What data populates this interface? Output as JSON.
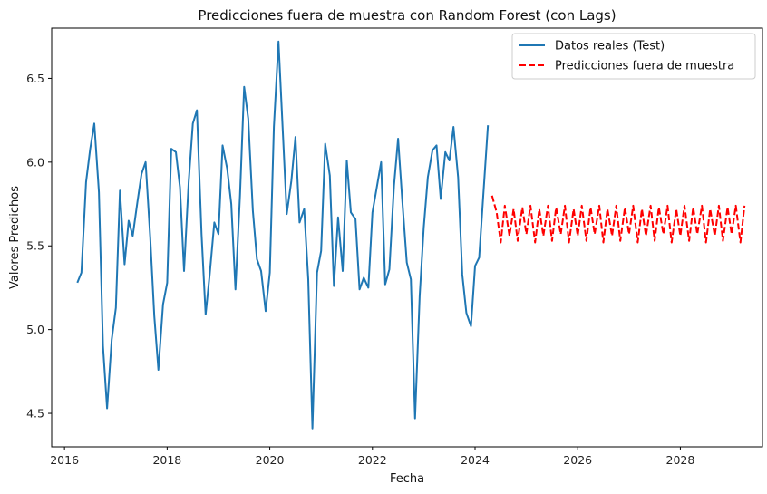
{
  "chart_data": {
    "type": "line",
    "title": "Predicciones fuera de muestra con Random Forest (con Lags)",
    "xlabel": "Fecha",
    "ylabel": "Valores Predichos",
    "xlim": [
      2015.75,
      2029.6
    ],
    "ylim": [
      4.3,
      6.8
    ],
    "xticks": [
      2016,
      2018,
      2020,
      2022,
      2024,
      2026,
      2028
    ],
    "yticks": [
      4.5,
      5.0,
      5.5,
      6.0,
      6.5
    ],
    "grid": false,
    "legend": "top-right",
    "series": [
      {
        "name": "Datos reales (Test)",
        "color": "#1f77b4",
        "style": "solid",
        "points": [
          [
            2016.25,
            5.28
          ],
          [
            2016.33,
            5.34
          ],
          [
            2016.42,
            5.88
          ],
          [
            2016.5,
            6.08
          ],
          [
            2016.58,
            6.23
          ],
          [
            2016.67,
            5.82
          ],
          [
            2016.75,
            4.9
          ],
          [
            2016.83,
            4.53
          ],
          [
            2016.92,
            4.94
          ],
          [
            2017.0,
            5.13
          ],
          [
            2017.08,
            5.83
          ],
          [
            2017.17,
            5.39
          ],
          [
            2017.25,
            5.65
          ],
          [
            2017.33,
            5.56
          ],
          [
            2017.42,
            5.76
          ],
          [
            2017.5,
            5.93
          ],
          [
            2017.58,
            6.0
          ],
          [
            2017.67,
            5.55
          ],
          [
            2017.75,
            5.08
          ],
          [
            2017.83,
            4.76
          ],
          [
            2017.92,
            5.15
          ],
          [
            2018.0,
            5.28
          ],
          [
            2018.08,
            6.08
          ],
          [
            2018.17,
            6.06
          ],
          [
            2018.25,
            5.85
          ],
          [
            2018.33,
            5.35
          ],
          [
            2018.42,
            5.88
          ],
          [
            2018.5,
            6.23
          ],
          [
            2018.58,
            6.31
          ],
          [
            2018.67,
            5.57
          ],
          [
            2018.75,
            5.09
          ],
          [
            2018.83,
            5.33
          ],
          [
            2018.92,
            5.64
          ],
          [
            2019.0,
            5.57
          ],
          [
            2019.08,
            6.1
          ],
          [
            2019.17,
            5.96
          ],
          [
            2019.25,
            5.75
          ],
          [
            2019.33,
            5.24
          ],
          [
            2019.42,
            5.8
          ],
          [
            2019.5,
            6.45
          ],
          [
            2019.58,
            6.26
          ],
          [
            2019.67,
            5.71
          ],
          [
            2019.75,
            5.42
          ],
          [
            2019.83,
            5.35
          ],
          [
            2019.92,
            5.11
          ],
          [
            2020.0,
            5.34
          ],
          [
            2020.08,
            6.21
          ],
          [
            2020.17,
            6.72
          ],
          [
            2020.25,
            6.21
          ],
          [
            2020.33,
            5.69
          ],
          [
            2020.42,
            5.89
          ],
          [
            2020.5,
            6.15
          ],
          [
            2020.58,
            5.64
          ],
          [
            2020.67,
            5.72
          ],
          [
            2020.75,
            5.3
          ],
          [
            2020.83,
            4.41
          ],
          [
            2020.92,
            5.34
          ],
          [
            2021.0,
            5.47
          ],
          [
            2021.08,
            6.11
          ],
          [
            2021.17,
            5.92
          ],
          [
            2021.25,
            5.26
          ],
          [
            2021.33,
            5.67
          ],
          [
            2021.42,
            5.35
          ],
          [
            2021.5,
            6.01
          ],
          [
            2021.58,
            5.7
          ],
          [
            2021.67,
            5.66
          ],
          [
            2021.75,
            5.24
          ],
          [
            2021.83,
            5.31
          ],
          [
            2021.92,
            5.25
          ],
          [
            2022.0,
            5.7
          ],
          [
            2022.08,
            5.84
          ],
          [
            2022.17,
            6.0
          ],
          [
            2022.25,
            5.27
          ],
          [
            2022.33,
            5.36
          ],
          [
            2022.42,
            5.86
          ],
          [
            2022.5,
            6.14
          ],
          [
            2022.58,
            5.78
          ],
          [
            2022.67,
            5.4
          ],
          [
            2022.75,
            5.3
          ],
          [
            2022.83,
            4.47
          ],
          [
            2022.92,
            5.2
          ],
          [
            2023.0,
            5.61
          ],
          [
            2023.08,
            5.91
          ],
          [
            2023.17,
            6.07
          ],
          [
            2023.25,
            6.1
          ],
          [
            2023.33,
            5.78
          ],
          [
            2023.42,
            6.06
          ],
          [
            2023.5,
            6.01
          ],
          [
            2023.58,
            6.21
          ],
          [
            2023.67,
            5.91
          ],
          [
            2023.75,
            5.33
          ],
          [
            2023.83,
            5.1
          ],
          [
            2023.92,
            5.02
          ],
          [
            2024.0,
            5.38
          ],
          [
            2024.08,
            5.43
          ],
          [
            2024.25,
            6.22
          ]
        ]
      },
      {
        "name": "Predicciones fuera de muestra",
        "color": "#ff0000",
        "style": "dashed",
        "points": [
          [
            2024.33,
            5.8
          ],
          [
            2024.42,
            5.7
          ],
          [
            2024.5,
            5.52
          ],
          [
            2024.58,
            5.74
          ],
          [
            2024.67,
            5.56
          ],
          [
            2024.75,
            5.72
          ],
          [
            2024.83,
            5.53
          ],
          [
            2024.92,
            5.73
          ],
          [
            2025.0,
            5.57
          ],
          [
            2025.08,
            5.74
          ],
          [
            2025.17,
            5.52
          ],
          [
            2025.25,
            5.72
          ],
          [
            2025.33,
            5.56
          ],
          [
            2025.42,
            5.74
          ],
          [
            2025.5,
            5.53
          ],
          [
            2025.58,
            5.73
          ],
          [
            2025.67,
            5.57
          ],
          [
            2025.75,
            5.74
          ],
          [
            2025.83,
            5.52
          ],
          [
            2025.92,
            5.72
          ],
          [
            2026.0,
            5.56
          ],
          [
            2026.08,
            5.74
          ],
          [
            2026.17,
            5.53
          ],
          [
            2026.25,
            5.73
          ],
          [
            2026.33,
            5.57
          ],
          [
            2026.42,
            5.74
          ],
          [
            2026.5,
            5.52
          ],
          [
            2026.58,
            5.72
          ],
          [
            2026.67,
            5.56
          ],
          [
            2026.75,
            5.74
          ],
          [
            2026.83,
            5.53
          ],
          [
            2026.92,
            5.73
          ],
          [
            2027.0,
            5.57
          ],
          [
            2027.08,
            5.74
          ],
          [
            2027.17,
            5.52
          ],
          [
            2027.25,
            5.72
          ],
          [
            2027.33,
            5.56
          ],
          [
            2027.42,
            5.74
          ],
          [
            2027.5,
            5.53
          ],
          [
            2027.58,
            5.73
          ],
          [
            2027.67,
            5.57
          ],
          [
            2027.75,
            5.74
          ],
          [
            2027.83,
            5.52
          ],
          [
            2027.92,
            5.72
          ],
          [
            2028.0,
            5.56
          ],
          [
            2028.08,
            5.74
          ],
          [
            2028.17,
            5.53
          ],
          [
            2028.25,
            5.73
          ],
          [
            2028.33,
            5.57
          ],
          [
            2028.42,
            5.74
          ],
          [
            2028.5,
            5.52
          ],
          [
            2028.58,
            5.72
          ],
          [
            2028.67,
            5.56
          ],
          [
            2028.75,
            5.74
          ],
          [
            2028.83,
            5.53
          ],
          [
            2028.92,
            5.73
          ],
          [
            2029.0,
            5.57
          ],
          [
            2029.08,
            5.74
          ],
          [
            2029.17,
            5.52
          ],
          [
            2029.25,
            5.74
          ]
        ]
      }
    ]
  }
}
